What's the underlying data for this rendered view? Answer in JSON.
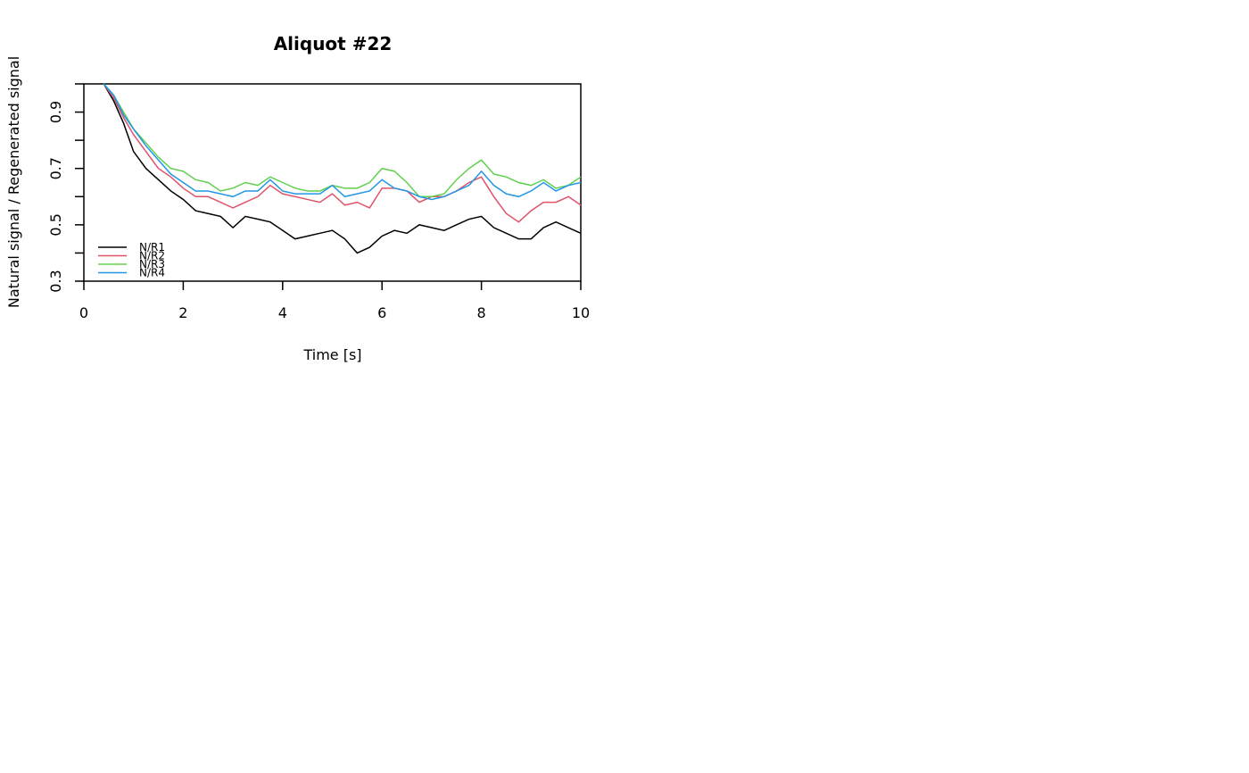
{
  "chart_data": {
    "type": "line",
    "title": "Aliquot #22",
    "x_label": "Time [s]",
    "y_label": "Natural signal / Regenerated signal",
    "x": [
      0.4,
      0.6,
      0.8,
      1.0,
      1.25,
      1.5,
      1.75,
      2.0,
      2.25,
      2.5,
      2.75,
      3.0,
      3.25,
      3.5,
      3.75,
      4.0,
      4.25,
      4.5,
      4.75,
      5.0,
      5.25,
      5.5,
      5.75,
      6.0,
      6.25,
      6.5,
      6.75,
      7.0,
      7.25,
      7.5,
      7.75,
      8.0,
      8.25,
      8.5,
      8.75,
      9.0,
      9.25,
      9.5,
      9.75,
      10.0
    ],
    "series": [
      {
        "name": "N/R1",
        "color": "#000000",
        "values": [
          1.0,
          0.94,
          0.86,
          0.76,
          0.7,
          0.66,
          0.62,
          0.59,
          0.55,
          0.54,
          0.53,
          0.49,
          0.53,
          0.52,
          0.51,
          0.48,
          0.45,
          0.46,
          0.47,
          0.48,
          0.45,
          0.4,
          0.42,
          0.46,
          0.48,
          0.47,
          0.5,
          0.49,
          0.48,
          0.5,
          0.52,
          0.53,
          0.49,
          0.47,
          0.45,
          0.45,
          0.49,
          0.51,
          0.49,
          0.47
        ]
      },
      {
        "name": "N/R2",
        "color": "#DF536B",
        "values": [
          1.0,
          0.95,
          0.88,
          0.82,
          0.76,
          0.7,
          0.67,
          0.63,
          0.6,
          0.6,
          0.58,
          0.56,
          0.58,
          0.6,
          0.64,
          0.61,
          0.6,
          0.59,
          0.58,
          0.61,
          0.57,
          0.58,
          0.56,
          0.63,
          0.63,
          0.62,
          0.58,
          0.6,
          0.6,
          0.62,
          0.65,
          0.67,
          0.6,
          0.54,
          0.51,
          0.55,
          0.58,
          0.58,
          0.6,
          0.57
        ]
      },
      {
        "name": "N/R3",
        "color": "#61D04F",
        "values": [
          1.0,
          0.96,
          0.9,
          0.84,
          0.79,
          0.74,
          0.7,
          0.69,
          0.66,
          0.65,
          0.62,
          0.63,
          0.65,
          0.64,
          0.67,
          0.65,
          0.63,
          0.62,
          0.62,
          0.64,
          0.63,
          0.63,
          0.65,
          0.7,
          0.69,
          0.65,
          0.6,
          0.6,
          0.61,
          0.66,
          0.7,
          0.73,
          0.68,
          0.67,
          0.65,
          0.64,
          0.66,
          0.63,
          0.64,
          0.67
        ]
      },
      {
        "name": "N/R4",
        "color": "#2297E6",
        "values": [
          1.0,
          0.96,
          0.89,
          0.84,
          0.78,
          0.73,
          0.68,
          0.65,
          0.62,
          0.62,
          0.61,
          0.6,
          0.62,
          0.62,
          0.66,
          0.62,
          0.61,
          0.61,
          0.61,
          0.64,
          0.6,
          0.61,
          0.62,
          0.66,
          0.63,
          0.62,
          0.6,
          0.59,
          0.6,
          0.62,
          0.64,
          0.69,
          0.64,
          0.61,
          0.6,
          0.62,
          0.65,
          0.62,
          0.64,
          0.65
        ]
      }
    ],
    "xlim": [
      0,
      10
    ],
    "xticks": [
      0,
      2,
      4,
      6,
      8,
      10
    ],
    "ylim": [
      0.3,
      1.0
    ],
    "yticks": [
      0.3,
      0.5,
      0.7,
      0.9
    ],
    "yticks_unlabeled": [
      0.4,
      0.6,
      0.8,
      1.0
    ],
    "hline": 1.0,
    "legend": "bottom-left"
  }
}
